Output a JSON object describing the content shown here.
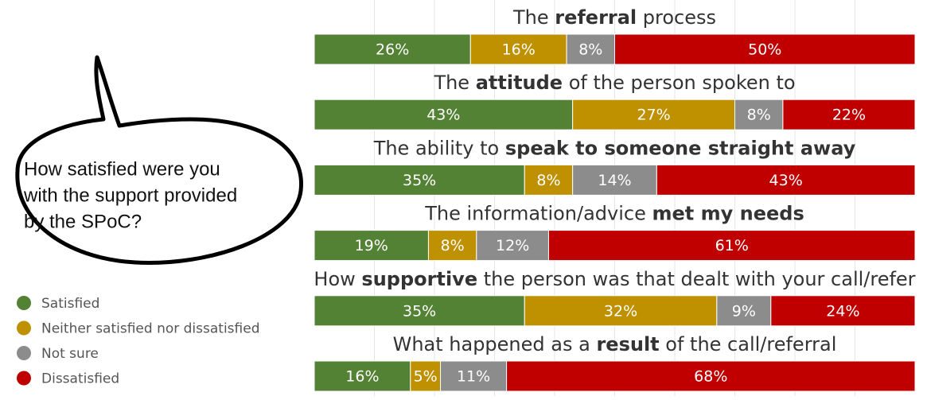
{
  "chart_data": {
    "type": "stacked-bar-horizontal",
    "annotation": [
      "How satisfied were you",
      "with the support provided",
      "by the SPoC?"
    ],
    "categories": [
      [
        "The ",
        "referral",
        " process"
      ],
      [
        "The ",
        "attitude",
        " of the person spoken to"
      ],
      [
        "The ability to ",
        "speak to someone straight away"
      ],
      [
        "The information/advice ",
        "met my needs"
      ],
      [
        "How ",
        "supportive",
        " the person was that dealt with your call/refer"
      ],
      [
        "What happened as a ",
        "result",
        " of the call/referral"
      ]
    ],
    "series": [
      {
        "name": "Satisfied",
        "color": "#548235",
        "values": [
          26,
          43,
          35,
          19,
          35,
          16
        ],
        "value_labels": [
          "26%",
          "43%",
          "35%",
          "19%",
          "35%",
          "16%"
        ]
      },
      {
        "name": "Neither satisfied nor dissatisfied",
        "color": "#bf9000",
        "values": [
          16,
          27,
          8,
          8,
          32,
          5
        ],
        "value_labels": [
          "16%",
          "27%",
          "8%",
          "8%",
          "32%",
          "5%"
        ]
      },
      {
        "name": "Not sure",
        "color": "#8c8c8c",
        "values": [
          8,
          8,
          14,
          12,
          9,
          11
        ],
        "value_labels": [
          "8%",
          "8%",
          "14%",
          "12%",
          "9%",
          "11%"
        ]
      },
      {
        "name": "Dissatisfied",
        "color": "#c00000",
        "values": [
          50,
          22,
          43,
          61,
          24,
          68
        ],
        "value_labels": [
          "50%",
          "22%",
          "43%",
          "61%",
          "24%",
          "68%"
        ]
      }
    ],
    "xlim": [
      0,
      100
    ],
    "gridlines": [
      10,
      20,
      30,
      40,
      50,
      60,
      70,
      80,
      90
    ]
  }
}
